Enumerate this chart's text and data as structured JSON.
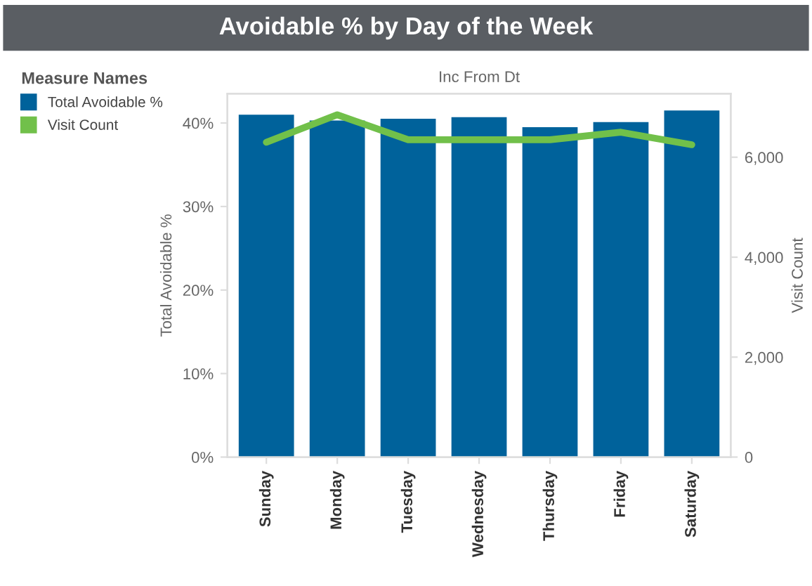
{
  "chart_data": {
    "type": "bar",
    "title": "Avoidable % by Day of the Week",
    "subtitle": "Inc From Dt",
    "ylabel": "Total Avoidable %",
    "y2label": "Visit Count",
    "legend_title": "Measure Names",
    "legend": "left",
    "categories": [
      "Sunday",
      "Monday",
      "Tuesday",
      "Wednesday",
      "Thursday",
      "Friday",
      "Saturday"
    ],
    "series": [
      {
        "name": "Total Avoidable %",
        "color": "#00629b",
        "values": [
          41.0,
          40.3,
          40.5,
          40.7,
          39.5,
          40.1,
          41.5
        ]
      },
      {
        "name": "Visit Count",
        "type": "line",
        "axis": "y2",
        "color": "#71c04a",
        "values": [
          6300,
          6850,
          6350,
          6350,
          6350,
          6500,
          6250
        ]
      }
    ],
    "ylim": [
      0,
      43.5
    ],
    "yticks": [
      {
        "value": 0,
        "label": "0%"
      },
      {
        "value": 10,
        "label": "10%"
      },
      {
        "value": 20,
        "label": "20%"
      },
      {
        "value": 30,
        "label": "30%"
      },
      {
        "value": 40,
        "label": "40%"
      }
    ],
    "y2lim": [
      0,
      7270
    ],
    "y2ticks": [
      0,
      {
        "value": 2000,
        "label": "2,000"
      },
      {
        "value": 4000,
        "label": "4,000"
      },
      {
        "value": 6000,
        "label": "6,000"
      }
    ],
    "grid": false
  }
}
